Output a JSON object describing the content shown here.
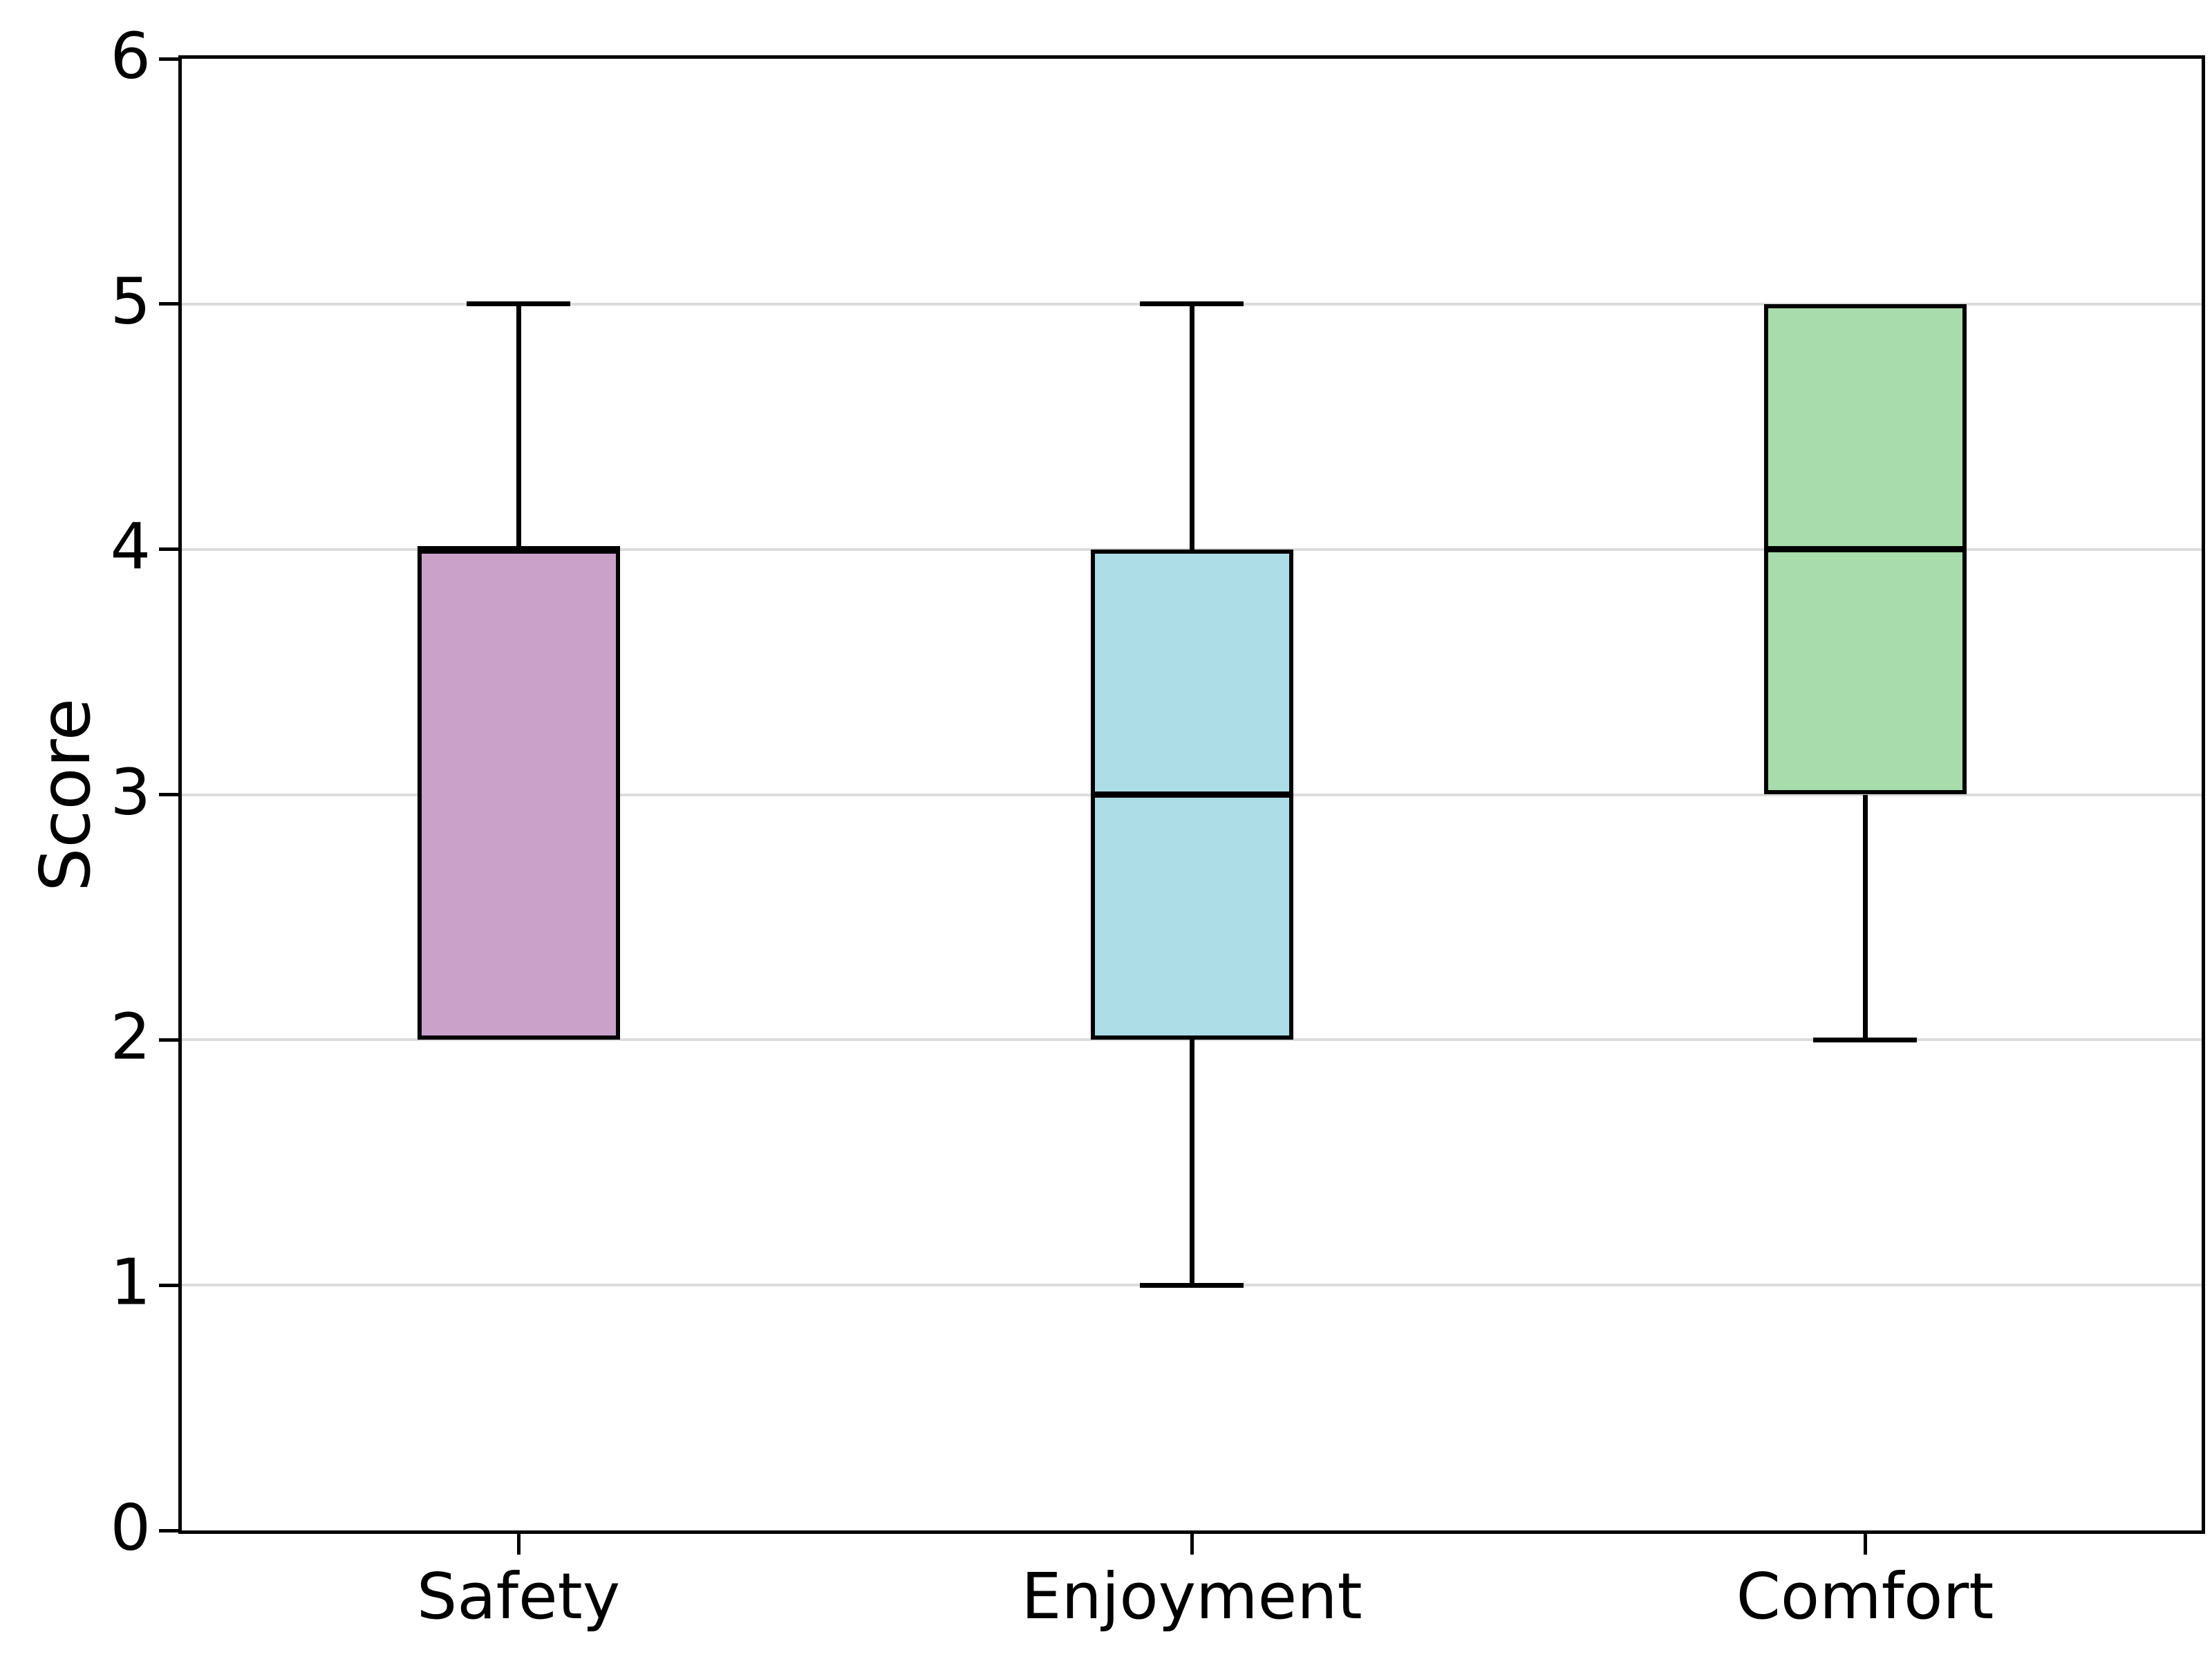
{
  "axes": {
    "ylabel": "Score",
    "ylim": [
      0,
      6
    ],
    "yticks": [
      0,
      1,
      2,
      3,
      4,
      5,
      6
    ],
    "grid_values": [
      1,
      2,
      3,
      4,
      5
    ],
    "grid_color": "#dcdcdc",
    "spine_color": "#000000",
    "text_color": "#000000"
  },
  "chart_data": {
    "type": "box",
    "title": "",
    "xlabel": "",
    "ylabel": "Score",
    "ylim": [
      0,
      6
    ],
    "grid": "horizontal",
    "legend": "none",
    "categories": [
      "Safety",
      "Enjoyment",
      "Comfort"
    ],
    "series": [
      {
        "name": "Safety",
        "whislo": 2,
        "q1": 2,
        "med": 4,
        "q3": 4,
        "whishi": 5,
        "fill": "#c9a1c9"
      },
      {
        "name": "Enjoyment",
        "whislo": 1,
        "q1": 2,
        "med": 3,
        "q3": 4,
        "whishi": 5,
        "fill": "#addde6"
      },
      {
        "name": "Comfort",
        "whislo": 2,
        "q1": 3,
        "med": 4,
        "q3": 5,
        "whishi": 5,
        "fill": "#a9dcac"
      }
    ],
    "box_edge_color": "#000000",
    "median_color": "#000000",
    "whisker_color": "#000000"
  }
}
